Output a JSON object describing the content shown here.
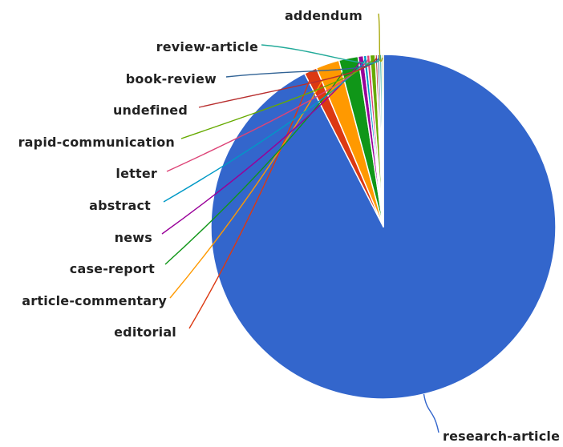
{
  "chart_data": {
    "type": "pie",
    "title": "",
    "legend": "none",
    "slices": [
      {
        "label": "research-article",
        "value": 92.45,
        "color": "#3366CC"
      },
      {
        "label": "editorial",
        "value": 1.2,
        "color": "#DC3912"
      },
      {
        "label": "article-commentary",
        "value": 2.2,
        "color": "#FF9900"
      },
      {
        "label": "case-report",
        "value": 1.8,
        "color": "#109618"
      },
      {
        "label": "news",
        "value": 0.5,
        "color": "#990099"
      },
      {
        "label": "abstract",
        "value": 0.3,
        "color": "#0099C6"
      },
      {
        "label": "letter",
        "value": 0.3,
        "color": "#DD4477"
      },
      {
        "label": "rapid-communication",
        "value": 0.5,
        "color": "#66AA00"
      },
      {
        "label": "undefined",
        "value": 0.2,
        "color": "#B82E2E"
      },
      {
        "label": "book-review",
        "value": 0.2,
        "color": "#316395"
      },
      {
        "label": "review-article",
        "value": 0.2,
        "color": "#22AA99"
      },
      {
        "label": "addendum",
        "value": 0.15,
        "color": "#AAAA11"
      }
    ]
  }
}
